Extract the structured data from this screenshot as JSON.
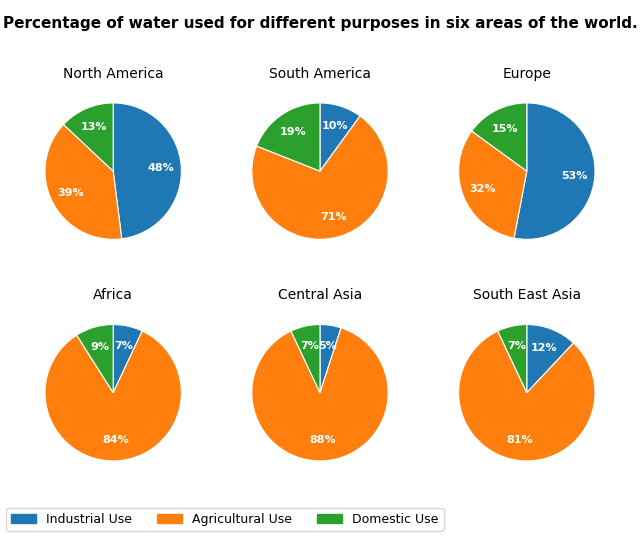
{
  "title": "Percentage of water used for different purposes in six areas of the world.",
  "legend": "lower left",
  "chart_data": [
    {
      "type": "pie",
      "title": "North America",
      "categories": [
        "Industrial Use",
        "Agricultural Use",
        "Domestic Use"
      ],
      "values": [
        48,
        39,
        13
      ],
      "value_labels": [
        "48%",
        "39%",
        "13%"
      ],
      "data_labels": true
    },
    {
      "type": "pie",
      "title": "South America",
      "categories": [
        "Industrial Use",
        "Agricultural Use",
        "Domestic Use"
      ],
      "values": [
        10,
        71,
        19
      ],
      "value_labels": [
        "10%",
        "71%",
        "19%"
      ],
      "data_labels": true
    },
    {
      "type": "pie",
      "title": "Europe",
      "categories": [
        "Industrial Use",
        "Agricultural Use",
        "Domestic Use"
      ],
      "values": [
        53,
        32,
        15
      ],
      "value_labels": [
        "53%",
        "32%",
        "15%"
      ],
      "data_labels": true
    },
    {
      "type": "pie",
      "title": "Africa",
      "categories": [
        "Industrial Use",
        "Agricultural Use",
        "Domestic Use"
      ],
      "values": [
        7,
        84,
        9
      ],
      "value_labels": [
        "7%",
        "84%",
        "9%"
      ],
      "data_labels": true
    },
    {
      "type": "pie",
      "title": "Central Asia",
      "categories": [
        "Industrial Use",
        "Agricultural Use",
        "Domestic Use"
      ],
      "values": [
        5,
        88,
        7
      ],
      "value_labels": [
        "5%",
        "88%",
        "7%"
      ],
      "data_labels": true
    },
    {
      "type": "pie",
      "title": "South East Asia",
      "categories": [
        "Industrial Use",
        "Agricultural Use",
        "Domestic Use"
      ],
      "values": [
        12,
        81,
        7
      ],
      "value_labels": [
        "12%",
        "81%",
        "7%"
      ],
      "data_labels": true
    }
  ]
}
